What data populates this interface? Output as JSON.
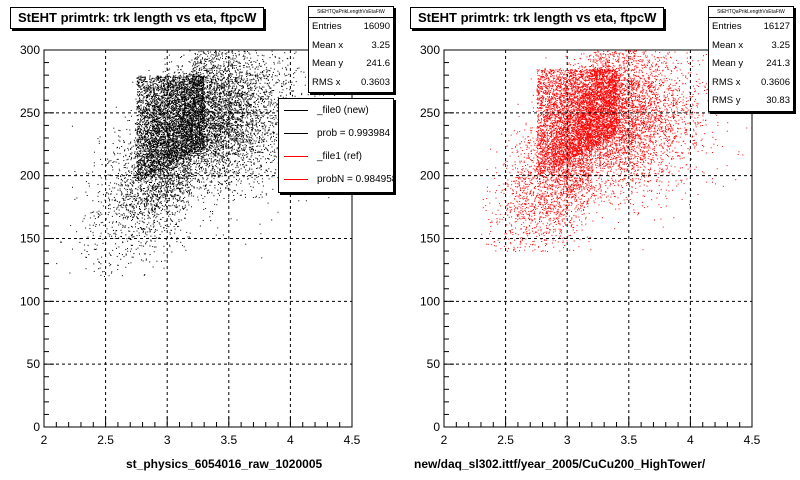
{
  "chart_data": [
    {
      "type": "scatter",
      "title": "StEHT primtrk: trk length vs eta, ftpcW",
      "xlabel": "st_physics_6054016_raw_1020005",
      "ylabel": "",
      "xlim": [
        2,
        4.5
      ],
      "ylim": [
        0,
        300
      ],
      "x_ticks": [
        "2",
        "2.5",
        "3",
        "3.5",
        "4",
        "4.5"
      ],
      "y_ticks": [
        "0",
        "50",
        "100",
        "150",
        "200",
        "250",
        "300"
      ],
      "grid": true,
      "point_color": "#000000",
      "series": [
        {
          "name": "_file0 (new)",
          "distribution": {
            "x_min": 2.05,
            "x_max": 4.5,
            "y_min": 120,
            "y_max": 300,
            "mean_x": 3.25,
            "mean_y": 241.6,
            "rms_x": 0.3603,
            "dense_core": {
              "x": [
                2.75,
                3.3
              ],
              "y": [
                195,
                280
              ]
            },
            "entries": 16090
          }
        }
      ],
      "stats": {
        "header": "StEHTQaPrikLengthVsEtaFtW",
        "rows": [
          {
            "label": "Entries",
            "value": "16090"
          },
          {
            "label": "Mean x",
            "value": "3.25"
          },
          {
            "label": "Mean y",
            "value": "241.6"
          },
          {
            "label": "RMS x",
            "value": "0.3603"
          }
        ]
      },
      "legend": {
        "placement": "top-right",
        "entries": [
          {
            "label": "_file0 (new)",
            "color": "#000000"
          },
          {
            "label": "prob = 0.993984",
            "color": "#000000"
          },
          {
            "label": "_file1 (ref)",
            "color": "#ff0000"
          },
          {
            "label": "probN = 0.984958",
            "color": "#ff0000"
          }
        ]
      }
    },
    {
      "type": "scatter",
      "title": "StEHT primtrk: trk length vs eta, ftpcW",
      "xlabel": "new/daq_sl302.ittf/year_2005/CuCu200_HighTower/",
      "ylabel": "",
      "xlim": [
        2,
        4.5
      ],
      "ylim": [
        0,
        300
      ],
      "x_ticks": [
        "2",
        "2.5",
        "3",
        "3.5",
        "4",
        "4.5"
      ],
      "y_ticks": [
        "0",
        "50",
        "100",
        "150",
        "200",
        "250",
        "300"
      ],
      "grid": true,
      "point_color": "#ff0000",
      "series": [
        {
          "name": "_file1 (ref)",
          "distribution": {
            "x_min": 2.3,
            "x_max": 4.5,
            "y_min": 140,
            "y_max": 300,
            "mean_x": 3.25,
            "mean_y": 241.3,
            "rms_x": 0.3606,
            "rms_y": 30.83,
            "dense_core": {
              "x": [
                2.75,
                3.4
              ],
              "y": [
                200,
                285
              ]
            },
            "entries": 16127
          }
        }
      ],
      "stats": {
        "header": "StEHTQaPrikLengthVsEtaFtW",
        "rows": [
          {
            "label": "Entries",
            "value": "16127"
          },
          {
            "label": "Mean x",
            "value": "3.25"
          },
          {
            "label": "Mean y",
            "value": "241.3"
          },
          {
            "label": "RMS x",
            "value": "0.3606"
          },
          {
            "label": "RMS y",
            "value": "30.83"
          }
        ]
      }
    }
  ]
}
